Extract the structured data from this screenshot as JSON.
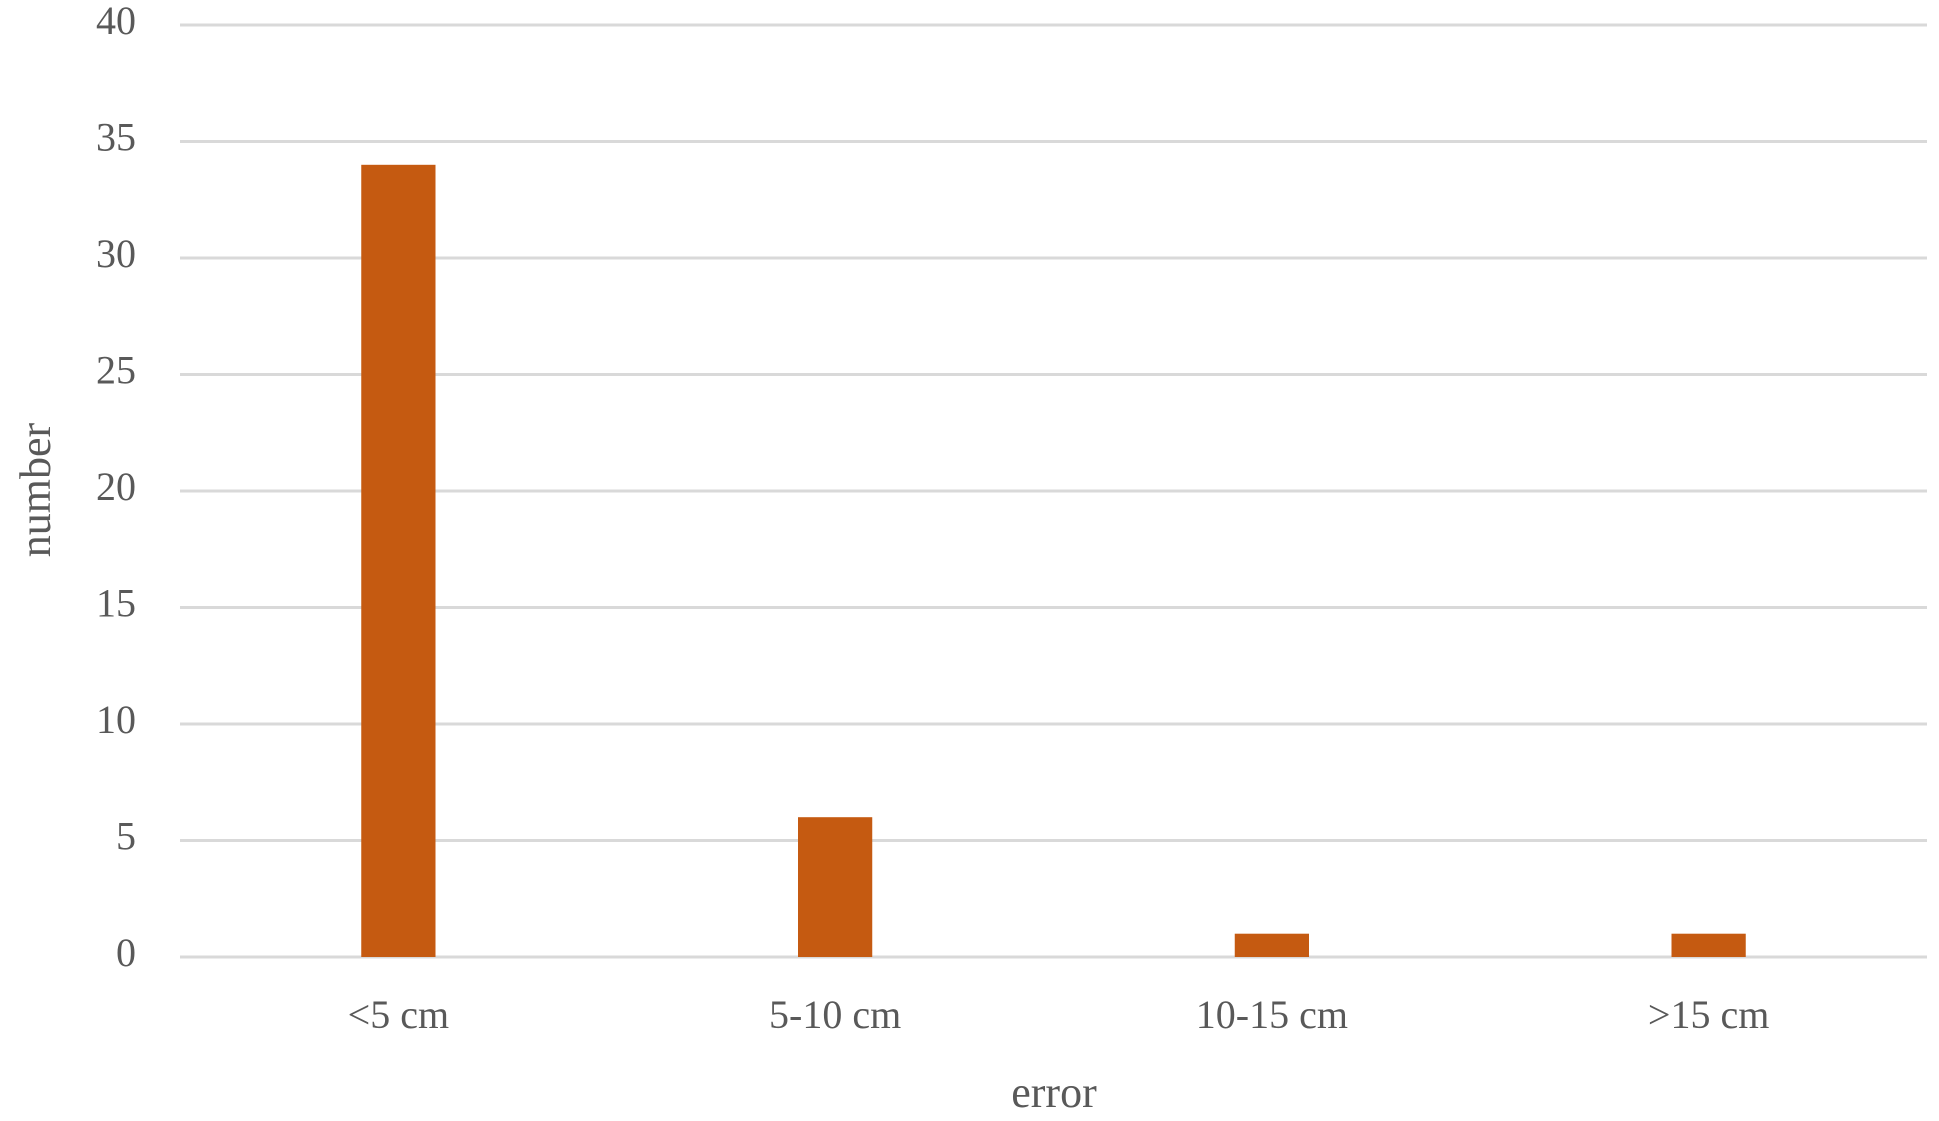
{
  "chart_data": {
    "type": "bar",
    "x_label": "error",
    "y_label": "number",
    "categories": [
      "<5 cm",
      "5-10 cm",
      "10-15 cm",
      ">15 cm"
    ],
    "values": [
      34,
      6,
      1,
      1
    ],
    "color": "#c55a11",
    "ylim": [
      0,
      40
    ],
    "yticks": [
      0,
      5,
      10,
      15,
      20,
      25,
      30,
      35,
      40
    ],
    "grid": true
  }
}
